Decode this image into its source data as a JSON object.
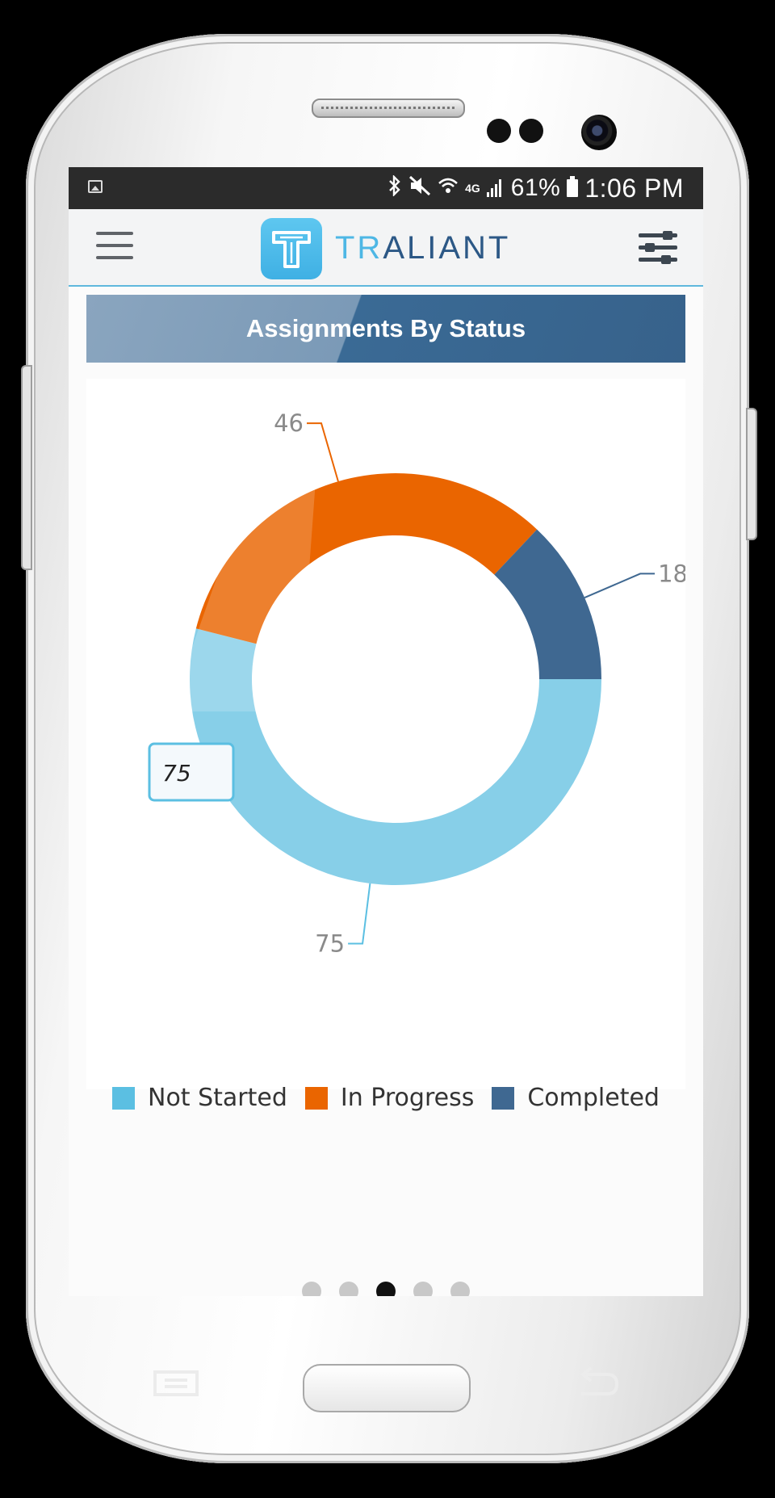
{
  "status_bar": {
    "battery": "61%",
    "time": "1:06 PM",
    "network": "4G",
    "icons": [
      "image-icon",
      "bluetooth-icon",
      "mute-icon",
      "wifi-icon",
      "signal-icon",
      "battery-icon"
    ]
  },
  "app_bar": {
    "logo_prefix": "TR",
    "logo_suffix": "ALIANT",
    "menu_icon": "hamburger-icon",
    "filter_icon": "sliders-icon"
  },
  "chart_header": {
    "title": "Assignments By Status"
  },
  "chart_data": {
    "type": "pie",
    "variant": "donut",
    "categories": [
      "Not Started",
      "In Progress",
      "Completed"
    ],
    "values": [
      75,
      46,
      18
    ],
    "colors": [
      "#87cfe8",
      "#ea6500",
      "#3f6891"
    ],
    "data_labels": [
      "75",
      "46",
      "18"
    ],
    "tooltip_value": "75",
    "legend_position": "bottom"
  },
  "legend": {
    "items": [
      {
        "label": "Not Started",
        "color": "#5bbfe2"
      },
      {
        "label": "In Progress",
        "color": "#ea6500"
      },
      {
        "label": "Completed",
        "color": "#3f6891"
      }
    ]
  },
  "pager": {
    "count": 5,
    "active_index": 2
  },
  "colors": {
    "brand_light": "#4eb7e5",
    "brand_dark": "#2c5886",
    "header_dark": "#37628b"
  }
}
